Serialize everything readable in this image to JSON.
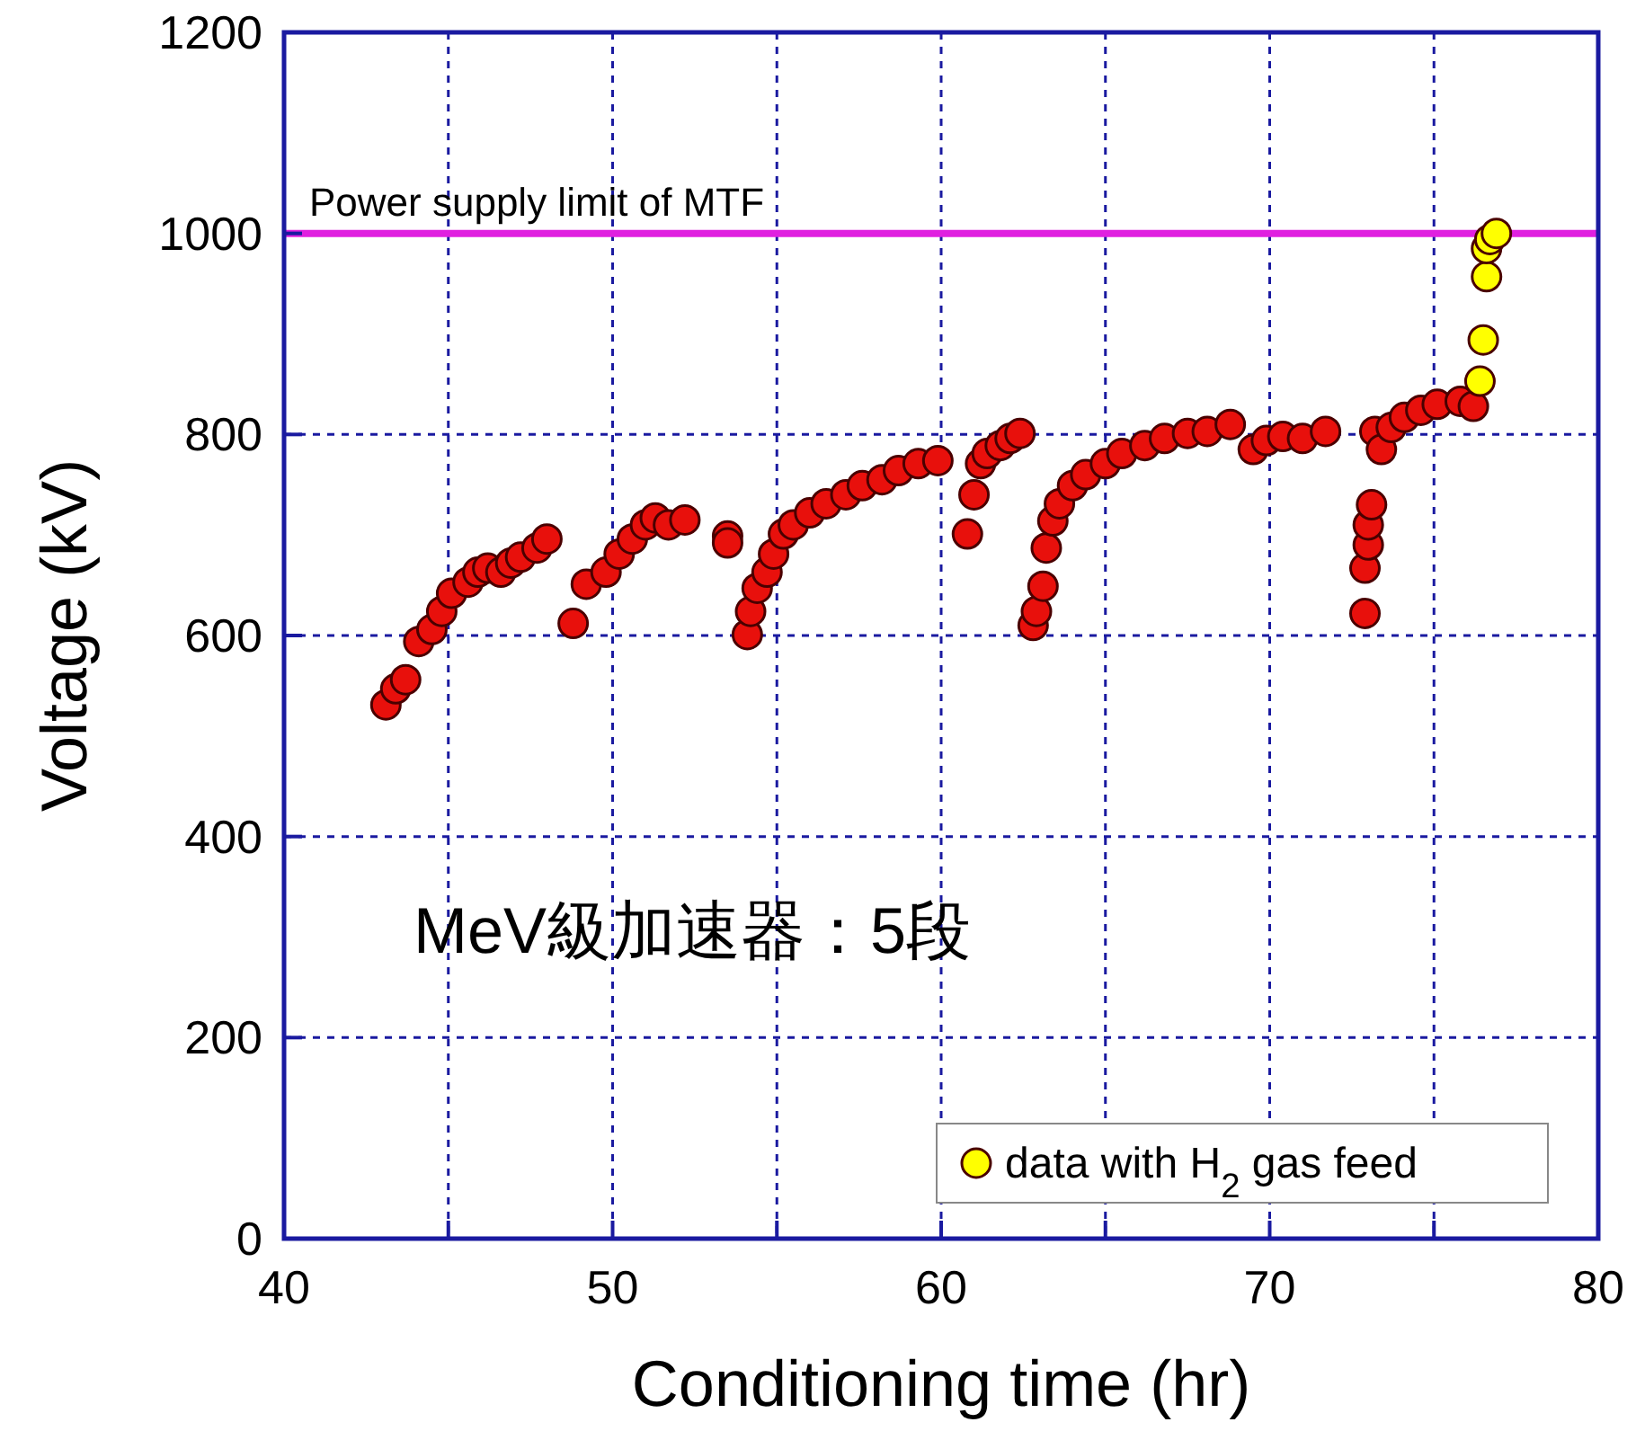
{
  "chart_data": {
    "type": "scatter",
    "xlabel": "Conditioning time (hr)",
    "ylabel": "Voltage (kV)",
    "xlim": [
      40,
      80
    ],
    "ylim": [
      0,
      1200
    ],
    "xticks": [
      40,
      {
        "value": 45,
        "label": null
      },
      50,
      {
        "value": 55,
        "label": null
      },
      60,
      {
        "value": 65,
        "label": null
      },
      70,
      {
        "value": 75,
        "label": null
      },
      80
    ],
    "yticks": [
      0,
      200,
      400,
      600,
      800,
      1000,
      1200
    ],
    "grid": true,
    "marker": "circle",
    "legend": "bottom right",
    "ref_lines": [
      {
        "axis": "y",
        "value": 1000,
        "label": "Power supply limit of MTF",
        "color": "#e020e0"
      }
    ],
    "annotations": [
      "MeV級加速器：5段"
    ],
    "series": [
      {
        "color": "#e8100c",
        "x": [
          43.1,
          43.4,
          43.7,
          44.1,
          44.5,
          44.8,
          45.1,
          45.6,
          45.9,
          46.2,
          46.6,
          46.9,
          47.2,
          47.7,
          48.0,
          48.8,
          49.2,
          49.8,
          50.2,
          50.6,
          51.0,
          51.3,
          51.7,
          52.2,
          53.5,
          53.5,
          54.1,
          54.2,
          54.4,
          54.7,
          54.9,
          55.2,
          55.5,
          56.0,
          56.5,
          57.1,
          57.6,
          58.2,
          58.7,
          59.3,
          59.9,
          60.8,
          61.0,
          61.2,
          61.4,
          61.8,
          62.1,
          62.4,
          62.8,
          62.9,
          63.1,
          63.2,
          63.4,
          63.6,
          64.0,
          64.4,
          65.0,
          65.5,
          66.2,
          66.8,
          67.5,
          68.1,
          68.8,
          69.5,
          69.9,
          70.4,
          71.0,
          71.7,
          72.9,
          72.9,
          73.0,
          73.0,
          73.1,
          73.2,
          73.4,
          73.7,
          74.1,
          74.6,
          75.1,
          75.8,
          76.2
        ],
        "values": [
          531,
          547,
          556,
          594,
          606,
          624,
          642,
          653,
          663,
          667,
          663,
          672,
          678,
          687,
          696,
          612,
          651,
          663,
          681,
          696,
          710,
          717,
          710,
          715,
          699,
          692,
          601,
          624,
          647,
          663,
          681,
          701,
          710,
          722,
          731,
          740,
          749,
          755,
          764,
          771,
          774,
          701,
          740,
          771,
          781,
          789,
          796,
          801,
          610,
          624,
          649,
          687,
          714,
          731,
          749,
          760,
          771,
          781,
          789,
          796,
          801,
          803,
          810,
          785,
          794,
          798,
          796,
          803,
          622,
          667,
          690,
          710,
          730,
          803,
          785,
          807,
          817,
          824,
          830,
          833,
          828
        ]
      },
      {
        "name": "data with H$_{2}$ gas feed",
        "color": "#ffff00",
        "x": [
          76.4,
          76.5,
          76.6,
          76.6,
          76.7,
          76.9
        ],
        "values": [
          853,
          894,
          957,
          985,
          994,
          1000
        ]
      }
    ]
  }
}
